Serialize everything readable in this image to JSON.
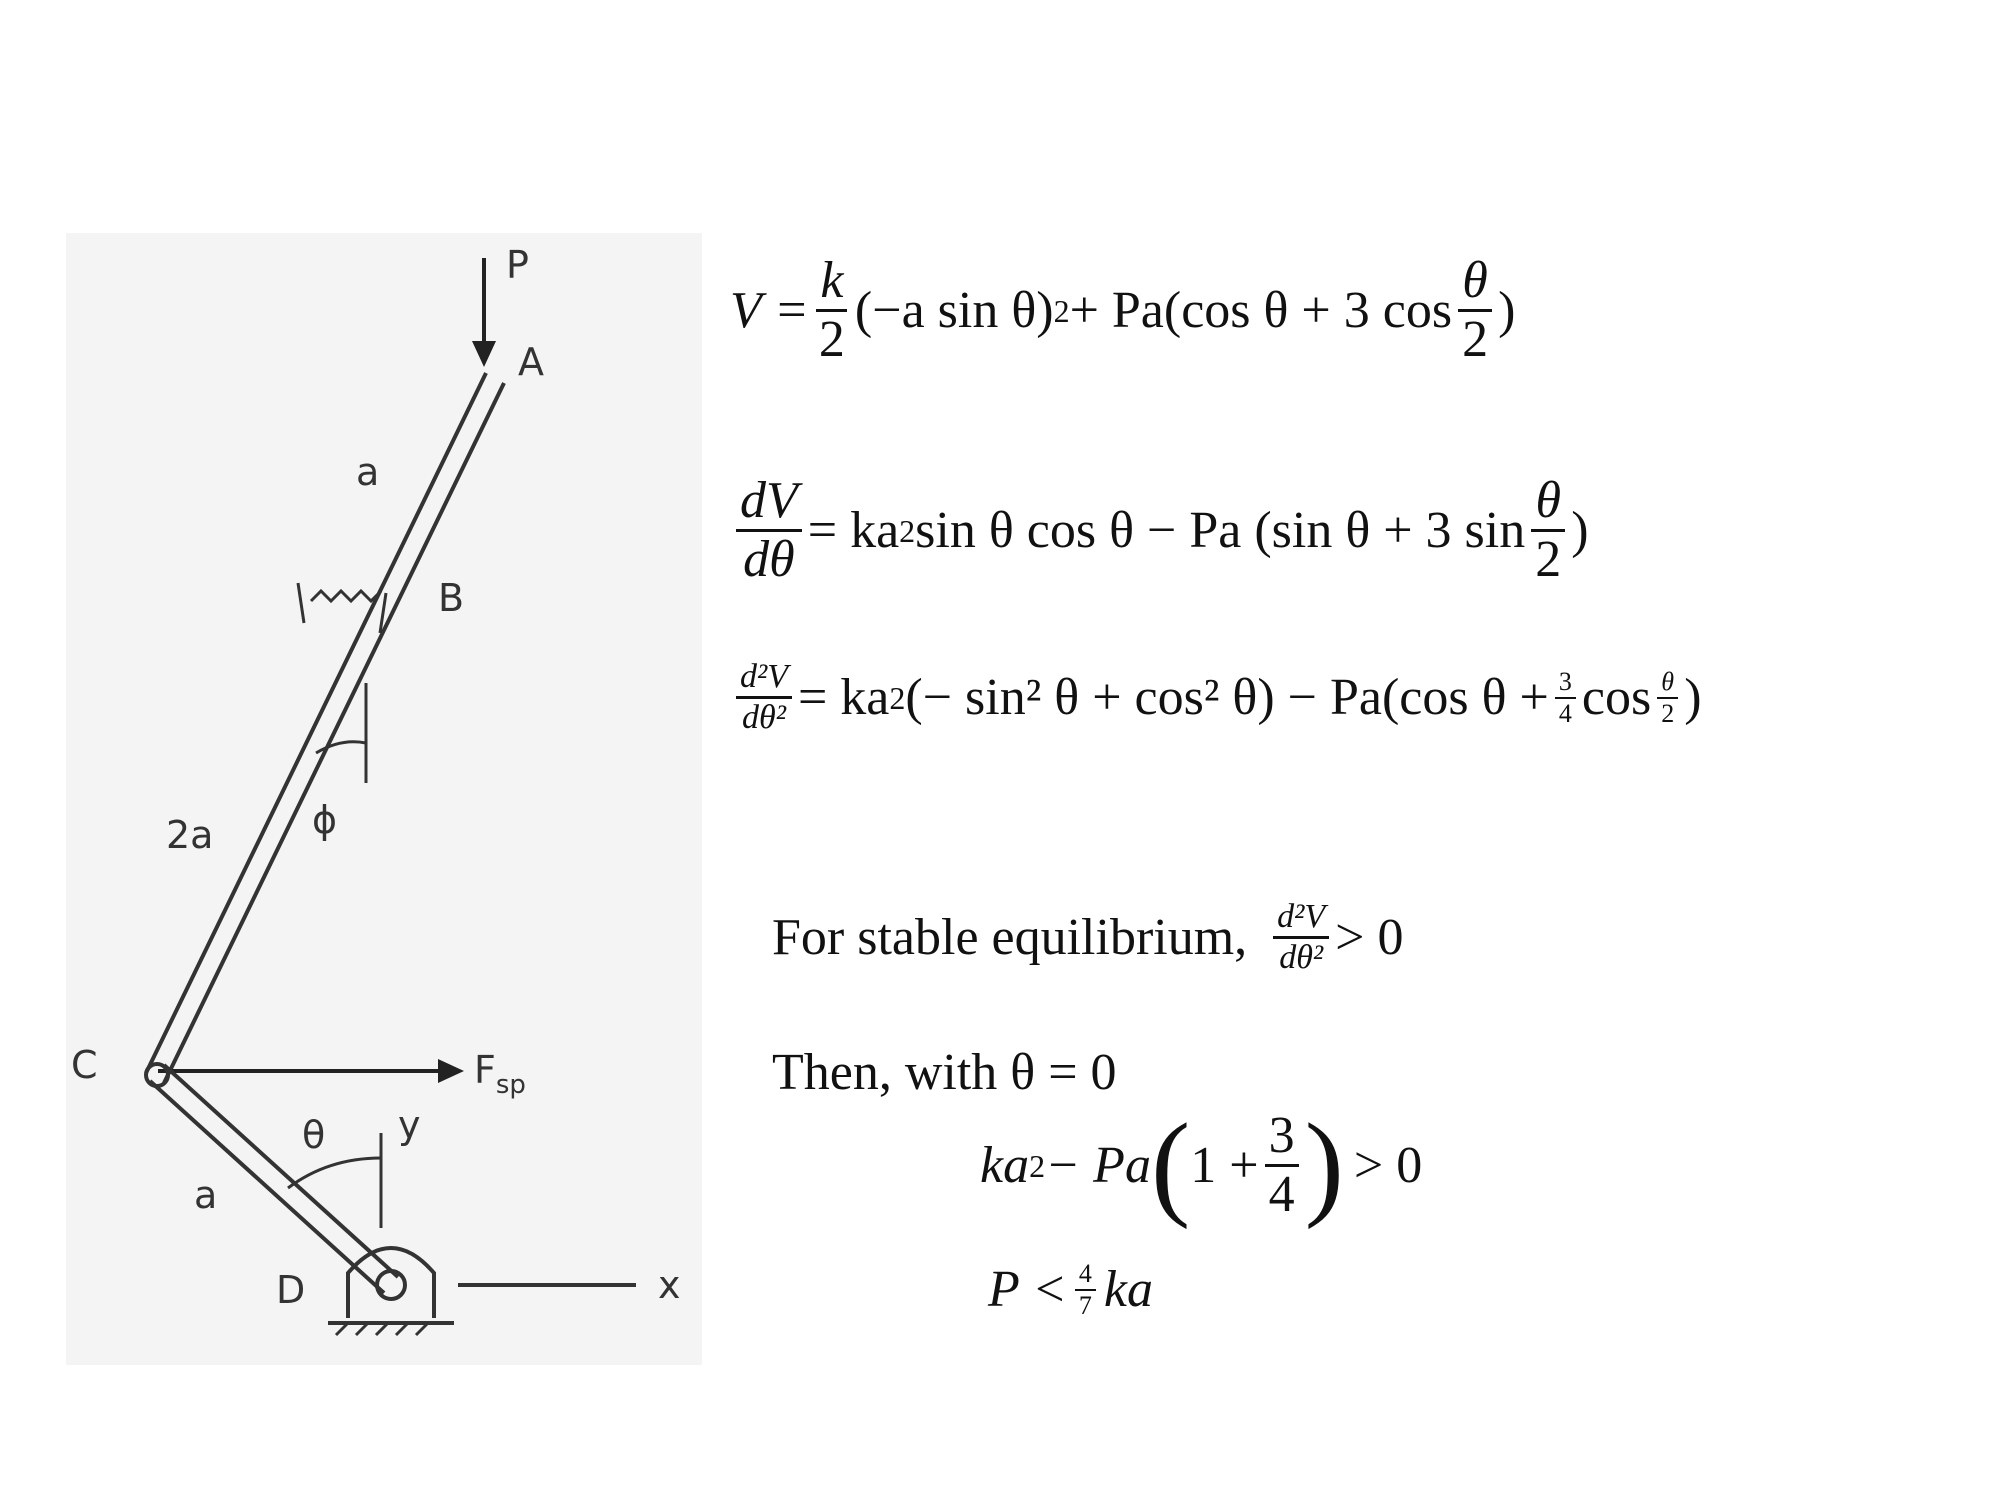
{
  "figure": {
    "labels": {
      "P": "P",
      "A": "A",
      "a_top": "a",
      "B": "B",
      "two_a": "2a",
      "phi": "ϕ",
      "C": "C",
      "Fsp": "F",
      "Fsp_sub": "sp",
      "theta": "θ",
      "y": "y",
      "a_bottom": "a",
      "D": "D",
      "x": "x"
    }
  },
  "equations": {
    "eq1": {
      "lhs": "V =",
      "frac_num": "k",
      "frac_den": "2",
      "middle": "(−a sin θ)",
      "sup": "2",
      "rest": " + Pa(cos θ + 3 cos",
      "theta_num": "θ",
      "theta_den": "2",
      "close": ")"
    },
    "eq2": {
      "frac_num": "dV",
      "frac_den": "dθ",
      "rhs_a": "= ka",
      "sup": "2",
      "rhs_b": " sin θ cos θ − Pa (sin θ + 3 sin",
      "theta_num": "θ",
      "theta_den": "2",
      "close": ")"
    },
    "eq3": {
      "frac_num": "d²V",
      "frac_den": "dθ²",
      "rhs_a": "= ka",
      "sup": "2",
      "rhs_b": "(− sin² θ + cos² θ) − Pa(cos θ +",
      "three_num": "3",
      "three_den": "4",
      "cos": "cos",
      "theta_num": "θ",
      "theta_den": "2",
      "close": ")"
    },
    "stable": {
      "text": "For stable equilibrium,",
      "frac_num": "d²V",
      "frac_den": "dθ²",
      "rhs": "> 0"
    },
    "then": {
      "text": "Then, with θ = 0"
    },
    "ineq1": {
      "lhs": "ka",
      "sup": "2",
      "mid": " − Pa",
      "open": "(",
      "one": "1 +",
      "num": "3",
      "den": "4",
      "close": ")",
      "rhs": "> 0"
    },
    "ineq2": {
      "lhs": "P <",
      "num": "4",
      "den": "7",
      "rhs": "ka"
    }
  }
}
